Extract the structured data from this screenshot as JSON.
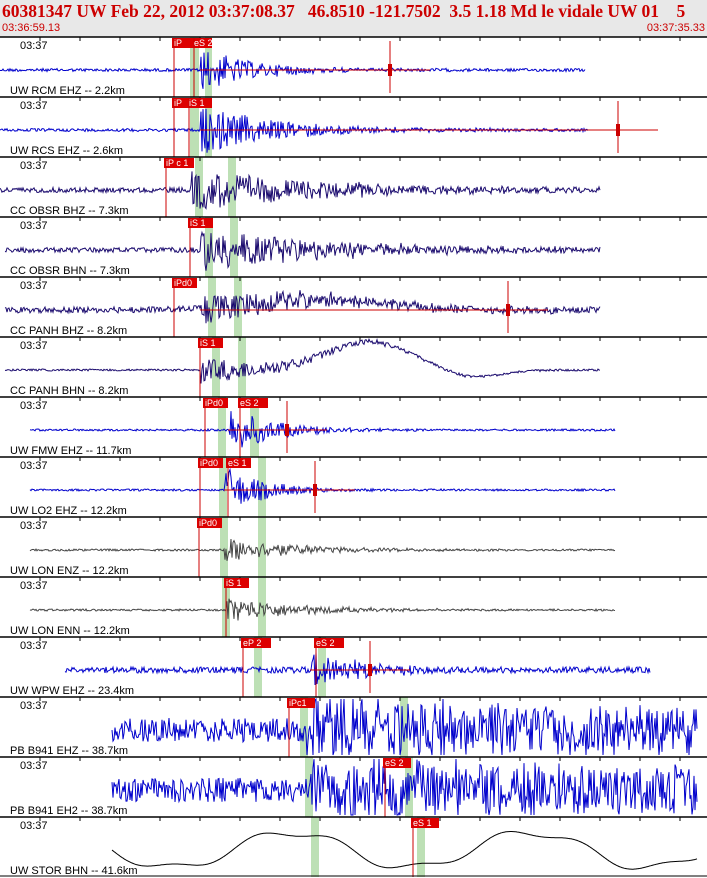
{
  "header": {
    "title": "60381347 UW Feb 22, 2012 03:37:08.37   46.8510 -121.7502  3.5 1.18 Md le vidale UW 01    5",
    "start_time": "03:36:59.13",
    "end_time": "03:37:35.33"
  },
  "panels": [
    {
      "time": "03:37",
      "label": "UW RCM EHZ -- 2.2km",
      "color": "#0000cc",
      "shape": "mb",
      "amp": 1.0,
      "picks": [
        {
          "text": "iP",
          "x": 172,
          "w": 20,
          "dx": 0
        },
        {
          "text": "eS 2",
          "x": 192,
          "w": 20,
          "dx": 0
        }
      ],
      "start": 0,
      "end": 585,
      "onset": 200,
      "decay": 55,
      "noise": 1.5,
      "fallen": 390
    },
    {
      "time": "03:37",
      "label": "UW RCS EHZ -- 2.6km",
      "color": "#0000cc",
      "shape": "mb",
      "amp": 1.1,
      "picks": [
        {
          "text": "iP",
          "x": 172,
          "w": 20,
          "dx": 0
        },
        {
          "text": "iS 1",
          "x": 187,
          "w": 25,
          "dx": 0
        }
      ],
      "start": 0,
      "end": 588,
      "onset": 200,
      "decay": 80,
      "noise": 1.5,
      "fallen": 618
    },
    {
      "time": "03:37",
      "label": "CC OBSR BHZ -- 7.3km",
      "color": "#1a0a6e",
      "shape": "mb",
      "amp": 1.0,
      "picks": [
        {
          "text": "iP c 1",
          "x": 164,
          "w": 30,
          "dx": 0
        }
      ],
      "start": 0,
      "end": 600,
      "onset": 190,
      "decay": 130,
      "noise": 2.5,
      "fallen": -1
    },
    {
      "time": "03:37",
      "label": "CC OBSR BHN -- 7.3km",
      "color": "#1a0a6e",
      "shape": "mb",
      "amp": 1.0,
      "picks": [
        {
          "text": "iS 1",
          "x": 188,
          "w": 25,
          "dx": 0
        }
      ],
      "start": 5,
      "end": 600,
      "onset": 200,
      "decay": 130,
      "noise": 2.5,
      "fallen": -1
    },
    {
      "time": "03:37",
      "label": "CC PANH BHZ -- 8.2km",
      "color": "#1a0a6e",
      "shape": "hump",
      "amp": 0.7,
      "picks": [
        {
          "text": "iPd0",
          "x": 172,
          "w": 25,
          "dx": 0
        }
      ],
      "start": 5,
      "end": 600,
      "onset": 200,
      "decay": 140,
      "noise": 3,
      "fallen": 508
    },
    {
      "time": "03:37",
      "label": "CC PANH BHN -- 8.2km",
      "color": "#1a0a6e",
      "shape": "big",
      "amp": 0.6,
      "picks": [
        {
          "text": "iS 1",
          "x": 198,
          "w": 25,
          "dx": 0
        }
      ],
      "start": 5,
      "end": 600,
      "onset": 200,
      "decay": 100,
      "noise": 1,
      "fallen": -1
    },
    {
      "time": "03:37",
      "label": "UW FMW EHZ -- 11.7km",
      "color": "#0000cc",
      "shape": "mb",
      "amp": 1.1,
      "picks": [
        {
          "text": "iPd0",
          "x": 203,
          "w": 25,
          "dx": 0
        },
        {
          "text": "eS 2",
          "x": 238,
          "w": 30,
          "dx": 0
        }
      ],
      "start": 30,
      "end": 615,
      "onset": 228,
      "decay": 45,
      "noise": 1,
      "fallen": 287
    },
    {
      "time": "03:37",
      "label": "UW LO2 EHZ -- 12.2km",
      "color": "#0000cc",
      "shape": "mb",
      "amp": 1.1,
      "picks": [
        {
          "text": "iPd0",
          "x": 198,
          "w": 25,
          "dx": 0
        },
        {
          "text": "eS 1",
          "x": 226,
          "w": 25,
          "dx": 0
        }
      ],
      "start": 30,
      "end": 615,
      "onset": 224,
      "decay": 40,
      "noise": 1,
      "fallen": 315
    },
    {
      "time": "03:37",
      "label": "UW LON ENZ -- 12.2km",
      "color": "#444444",
      "shape": "mb",
      "amp": 0.6,
      "picks": [
        {
          "text": "iPd0",
          "x": 197,
          "w": 25,
          "dx": 0
        }
      ],
      "start": 30,
      "end": 615,
      "onset": 224,
      "decay": 70,
      "noise": 1,
      "fallen": -1
    },
    {
      "time": "03:37",
      "label": "UW LON ENN -- 12.2km",
      "color": "#444444",
      "shape": "mb",
      "amp": 0.6,
      "picks": [
        {
          "text": "iS 1",
          "x": 224,
          "w": 25,
          "dx": 0
        }
      ],
      "start": 30,
      "end": 615,
      "onset": 226,
      "decay": 70,
      "noise": 1,
      "fallen": -1
    },
    {
      "time": "03:37",
      "label": "UW WPW EHZ -- 23.4km",
      "color": "#0000cc",
      "shape": "mb",
      "amp": 0.9,
      "picks": [
        {
          "text": "eP 2",
          "x": 241,
          "w": 30,
          "dx": 0
        },
        {
          "text": "eS 2",
          "x": 314,
          "w": 30,
          "dx": 0
        }
      ],
      "start": 65,
      "end": 650,
      "onset": 310,
      "decay": 50,
      "noise": 3,
      "fallen": 370
    },
    {
      "time": "03:37",
      "label": "PB B941 EHZ -- 38.7km",
      "color": "#0000cc",
      "shape": "noisy",
      "amp": 1.0,
      "picks": [
        {
          "text": "iPc1",
          "x": 287,
          "w": 28,
          "dx": 0
        }
      ],
      "start": 112,
      "end": 697,
      "onset": 305,
      "decay": 200,
      "noise": 12,
      "fallen": -1
    },
    {
      "time": "03:37",
      "label": "PB B941 EH2 -- 38.7km",
      "color": "#0000cc",
      "shape": "noisy",
      "amp": 1.0,
      "picks": [
        {
          "text": "eS 2",
          "x": 383,
          "w": 28,
          "dx": 0
        }
      ],
      "start": 112,
      "end": 697,
      "onset": 310,
      "decay": 200,
      "noise": 12,
      "fallen": -1
    },
    {
      "time": "03:37",
      "label": "UW STOR BHN -- 41.6km",
      "color": "#000000",
      "shape": "wave",
      "amp": 1.0,
      "picks": [
        {
          "text": "eS 1",
          "x": 411,
          "w": 28,
          "dx": 0
        }
      ],
      "start": 112,
      "end": 697,
      "onset": 410,
      "decay": 100,
      "noise": 0,
      "fallen": -1
    }
  ],
  "bands": [
    {
      "x1": 190,
      "x2": 199,
      "x3": 205,
      "x4": 212
    },
    {
      "x1": 190,
      "x2": 199,
      "x3": 205,
      "x4": 212
    },
    {
      "x1": 195,
      "x2": 203,
      "x3": 228,
      "x4": 236
    },
    {
      "x1": 205,
      "x2": 213,
      "x3": 230,
      "x4": 238
    },
    {
      "x1": 208,
      "x2": 216,
      "x3": 234,
      "x4": 242
    },
    {
      "x1": 212,
      "x2": 220,
      "x3": 238,
      "x4": 246
    },
    {
      "x1": 218,
      "x2": 226,
      "x3": 250,
      "x4": 259
    },
    {
      "x1": 219,
      "x2": 227,
      "x3": 258,
      "x4": 266
    },
    {
      "x1": 220,
      "x2": 228,
      "x3": 258,
      "x4": 266
    },
    {
      "x1": 222,
      "x2": 230,
      "x3": 258,
      "x4": 266
    },
    {
      "x1": 254,
      "x2": 262,
      "x3": 318,
      "x4": 326
    },
    {
      "x1": 300,
      "x2": 308,
      "x3": 400,
      "x4": 408
    },
    {
      "x1": 305,
      "x2": 313,
      "x3": 405,
      "x4": 413
    },
    {
      "x1": 311,
      "x2": 319,
      "x3": 417,
      "x4": 425
    }
  ]
}
